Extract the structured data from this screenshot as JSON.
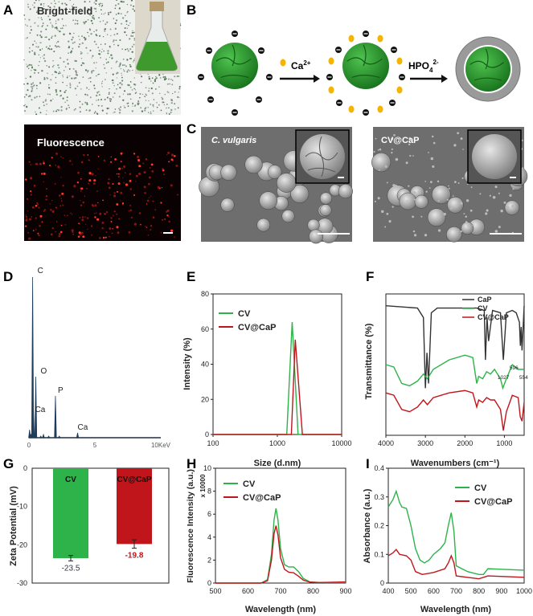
{
  "panel_letters": [
    "A",
    "B",
    "C",
    "D",
    "E",
    "F",
    "G",
    "H",
    "I"
  ],
  "panel_a": {
    "brightfield_label": "Bright-field",
    "fluorescence_label": "Fluorescence"
  },
  "panel_b": {
    "step1_label": "Ca",
    "step1_sup": "2+",
    "step2_label": "HPO",
    "step2_sub": "4",
    "step2_sup": "2-",
    "colors": {
      "cell": "#2e9a2e",
      "calcium": "#f5b400",
      "shell": "#9a9a9a"
    }
  },
  "panel_c": {
    "left_label": "C. vulgaris",
    "right_label": "CV@CaP"
  },
  "colors": {
    "CV": "#2db34a",
    "CV@CaP": "#c0161b",
    "CaP": "#333333",
    "eds": "#1f3c5c"
  },
  "chart_data": [
    {
      "id": "D",
      "type": "line",
      "xlabel": "",
      "x_ticks": [
        "0",
        "5",
        "10KeV"
      ],
      "xlim": [
        0,
        10
      ],
      "peaks": [
        {
          "label": "Ca",
          "x": 0.34,
          "y": 0.17
        },
        {
          "label": "C",
          "x": 0.28,
          "y": 1.0
        },
        {
          "label": "O",
          "x": 0.52,
          "y": 0.38
        },
        {
          "label": "P",
          "x": 2.01,
          "y": 0.26
        },
        {
          "label": "Ca",
          "x": 3.69,
          "y": 0.03
        }
      ]
    },
    {
      "id": "E",
      "type": "line",
      "xlabel": "Size (d.nm)",
      "ylabel": "Intensity (%)",
      "xscale": "log",
      "xlim": [
        100,
        10000
      ],
      "ylim": [
        0,
        80
      ],
      "x_ticks": [
        "100",
        "1000",
        "10000"
      ],
      "y_ticks": [
        "0",
        "20",
        "40",
        "60",
        "80"
      ],
      "legend": "top-left",
      "series": [
        {
          "name": "CV",
          "x": [
            100,
            1400,
            1700,
            2100,
            10000
          ],
          "y": [
            0,
            0,
            64,
            0,
            0
          ]
        },
        {
          "name": "CV@CaP",
          "x": [
            100,
            1650,
            1900,
            2450,
            10000
          ],
          "y": [
            0,
            0,
            54,
            0,
            0
          ]
        }
      ]
    },
    {
      "id": "F",
      "type": "line",
      "xlabel": "Wavenumbers (cm⁻¹)",
      "ylabel": "Transmittance (%)",
      "xlim": [
        4000,
        500
      ],
      "x_ticks": [
        "4000",
        "3000",
        "2000",
        "1000"
      ],
      "legend": "top-right",
      "annotations": [
        "1027",
        "596",
        "554"
      ],
      "series": [
        {
          "name": "CaP",
          "x": [
            4000,
            3200,
            3050,
            3000,
            2960,
            2920,
            2850,
            2700,
            1700,
            1510,
            1480,
            1440,
            1400,
            1300,
            1100,
            1027,
            950,
            800,
            700,
            620,
            596,
            575,
            554,
            500
          ],
          "y": [
            55,
            54,
            50,
            20,
            35,
            22,
            52,
            54,
            54,
            53,
            32,
            50,
            40,
            53,
            52,
            32,
            52,
            53,
            52,
            48,
            38,
            46,
            36,
            55
          ]
        },
        {
          "name": "CV",
          "x": [
            4000,
            3800,
            3600,
            3400,
            3200,
            3050,
            2950,
            2800,
            2400,
            2000,
            1800,
            1700,
            1650,
            1550,
            1450,
            1350,
            1250,
            1100,
            1040,
            950,
            800,
            650,
            500
          ],
          "y": [
            30,
            29,
            22,
            21,
            23,
            26,
            24,
            28,
            32,
            34,
            33,
            22,
            25,
            24,
            27,
            26,
            28,
            24,
            20,
            24,
            30,
            28,
            28
          ]
        },
        {
          "name": "CV@CaP",
          "x": [
            4000,
            3800,
            3600,
            3400,
            3200,
            3050,
            2950,
            2800,
            2400,
            2000,
            1800,
            1700,
            1650,
            1550,
            1450,
            1350,
            1250,
            1100,
            1027,
            950,
            800,
            650,
            600,
            554,
            500
          ],
          "y": [
            18,
            17,
            11,
            10,
            12,
            15,
            13,
            16,
            18,
            19,
            18,
            12,
            15,
            14,
            16,
            15,
            15,
            11,
            2,
            10,
            17,
            16,
            8,
            6,
            14
          ]
        }
      ]
    },
    {
      "id": "G",
      "type": "bar",
      "ylabel": "Zeta Potential (mV)",
      "ylim": [
        -30,
        0
      ],
      "y_ticks": [
        "0",
        "-10",
        "-20",
        "-30"
      ],
      "categories": [
        "CV",
        "CV@CaP"
      ],
      "values": [
        -23.5,
        -19.8
      ],
      "errors": [
        0.7,
        1.1
      ],
      "value_labels": [
        "-23.5",
        "-19.8"
      ]
    },
    {
      "id": "H",
      "type": "line",
      "xlabel": "Wavelength (nm)",
      "ylabel": "Fluorescence Intensity (a.u.)",
      "y_multiplier": "x 10000",
      "xlim": [
        500,
        900
      ],
      "ylim": [
        0,
        10
      ],
      "x_ticks": [
        "500",
        "600",
        "700",
        "800",
        "900"
      ],
      "y_ticks": [
        "0",
        "2",
        "4",
        "6",
        "8",
        "10"
      ],
      "legend": "top-left",
      "series": [
        {
          "name": "CV",
          "x": [
            500,
            640,
            660,
            672,
            680,
            686,
            692,
            700,
            712,
            725,
            740,
            755,
            770,
            790,
            820,
            900
          ],
          "y": [
            0,
            0,
            0.3,
            2.5,
            5.5,
            6.5,
            5.5,
            3.0,
            1.6,
            1.4,
            1.4,
            1.0,
            0.4,
            0.1,
            0.05,
            0.05
          ]
        },
        {
          "name": "CV@CaP",
          "x": [
            500,
            640,
            660,
            672,
            680,
            686,
            692,
            700,
            712,
            725,
            740,
            755,
            770,
            790,
            820,
            900
          ],
          "y": [
            0,
            0,
            0.2,
            2.0,
            4.3,
            5.0,
            4.2,
            2.2,
            1.2,
            0.95,
            0.9,
            0.6,
            0.25,
            0.08,
            0.05,
            0.1
          ]
        }
      ]
    },
    {
      "id": "I",
      "type": "line",
      "xlabel": "Wavelength (nm)",
      "ylabel": "Absorbance (a.u.)",
      "xlim": [
        400,
        1000
      ],
      "ylim": [
        0,
        0.4
      ],
      "x_ticks": [
        "400",
        "500",
        "600",
        "700",
        "800",
        "900",
        "1000"
      ],
      "y_ticks": [
        "0",
        "0.1",
        "0.2",
        "0.3",
        "0.4"
      ],
      "legend": "top-right",
      "series": [
        {
          "name": "CV",
          "x": [
            400,
            420,
            435,
            450,
            460,
            480,
            500,
            520,
            540,
            560,
            580,
            600,
            630,
            650,
            665,
            678,
            690,
            700,
            750,
            800,
            820,
            840,
            900,
            1000
          ],
          "y": [
            0.265,
            0.29,
            0.32,
            0.28,
            0.265,
            0.26,
            0.2,
            0.12,
            0.08,
            0.07,
            0.08,
            0.1,
            0.12,
            0.14,
            0.2,
            0.245,
            0.18,
            0.06,
            0.04,
            0.03,
            0.03,
            0.05,
            0.048,
            0.045
          ]
        },
        {
          "name": "CV@CaP",
          "x": [
            400,
            420,
            435,
            450,
            480,
            500,
            520,
            550,
            600,
            650,
            665,
            678,
            690,
            700,
            800,
            840,
            1000
          ],
          "y": [
            0.095,
            0.105,
            0.117,
            0.1,
            0.095,
            0.08,
            0.04,
            0.03,
            0.037,
            0.05,
            0.07,
            0.095,
            0.07,
            0.025,
            0.015,
            0.025,
            0.02
          ]
        }
      ]
    }
  ]
}
